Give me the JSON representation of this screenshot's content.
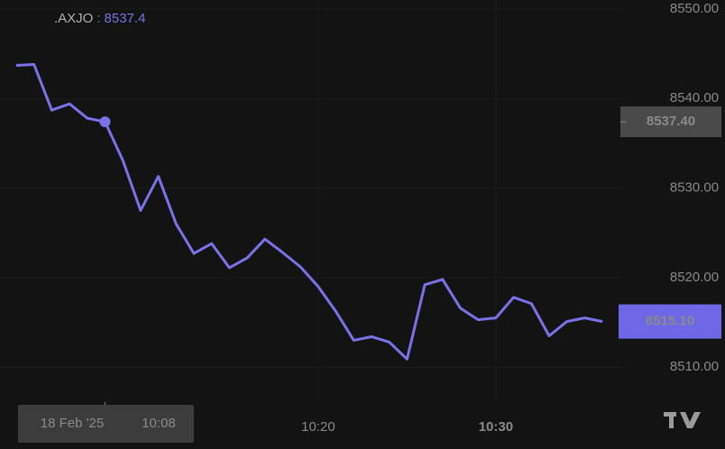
{
  "chart_data": {
    "type": "line",
    "symbol": ".AXJO",
    "x": [
      "10:03",
      "10:04",
      "10:05",
      "10:06",
      "10:07",
      "10:08",
      "10:09",
      "10:10",
      "10:11",
      "10:12",
      "10:13",
      "10:14",
      "10:15",
      "10:16",
      "10:17",
      "10:18",
      "10:19",
      "10:20",
      "10:21",
      "10:22",
      "10:23",
      "10:24",
      "10:25",
      "10:26",
      "10:27",
      "10:28",
      "10:29",
      "10:30",
      "10:31",
      "10:32",
      "10:33",
      "10:34",
      "10:35",
      "10:36"
    ],
    "series": [
      {
        "name": ".AXJO",
        "color": "#7a72e6",
        "values": [
          8543.7,
          8543.8,
          8538.7,
          8539.4,
          8537.8,
          8537.4,
          8533.1,
          8527.5,
          8531.3,
          8526.0,
          8522.7,
          8523.8,
          8521.1,
          8522.2,
          8524.3,
          8522.8,
          8521.2,
          8519.0,
          8516.2,
          8513.0,
          8513.4,
          8512.8,
          8510.9,
          8519.2,
          8519.8,
          8516.6,
          8515.3,
          8515.5,
          8517.8,
          8517.1,
          8513.5,
          8515.1,
          8515.5,
          8515.1
        ]
      }
    ],
    "ylim": [
      8506.2,
      8551.0
    ],
    "yticks": [
      {
        "value": 8510,
        "label": "8510.00"
      },
      {
        "value": 8520,
        "label": "8520.00"
      },
      {
        "value": 8530,
        "label": "8530.00"
      },
      {
        "value": 8540,
        "label": "8540.00"
      },
      {
        "value": 8550,
        "label": "8550.00"
      }
    ],
    "xticks": [
      "10:20",
      "10:30"
    ],
    "crosshair": {
      "date": "18 Feb '25",
      "time": "10:08",
      "value": 8537.4,
      "value_label": "8537.40"
    },
    "last_price": {
      "value": 8515.1,
      "label": "8515.10"
    },
    "grid": true
  }
}
